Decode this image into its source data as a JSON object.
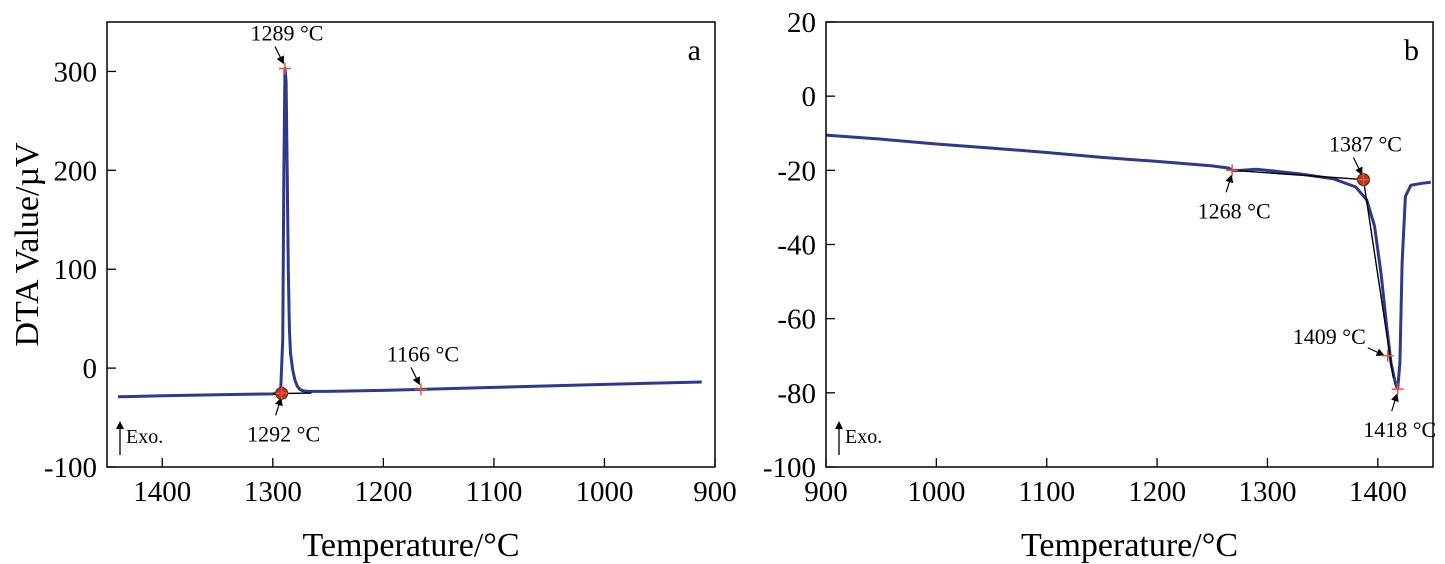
{
  "colors": {
    "curve": "#2c3a8c",
    "marker_plus": "#e8553a",
    "marker_dot": "#b5361f",
    "tangent": "#000000",
    "arrow": "#000000"
  },
  "chart_data": [
    {
      "type": "line",
      "panel": "a",
      "xlabel": "Temperature/°C",
      "ylabel": "DTA Value/µV",
      "xlim": [
        1450,
        900
      ],
      "ylim": [
        -100,
        350
      ],
      "x_reversed": true,
      "xticks": [
        1400,
        1300,
        1200,
        1100,
        1000,
        900
      ],
      "xtick_labels": [
        "1400",
        "1300",
        "1200",
        "1100",
        "1000",
        "900"
      ],
      "yticks": [
        -100,
        0,
        100,
        200,
        300
      ],
      "ytick_labels": [
        "-100",
        "0",
        "100",
        "200",
        "300"
      ],
      "exo_label": "Exo.",
      "series": [
        {
          "x": [
            1440,
            1400,
            1350,
            1300,
            1296,
            1293,
            1291,
            1290,
            1289,
            1288,
            1287,
            1286,
            1285,
            1284,
            1282,
            1280,
            1278,
            1276,
            1274,
            1272,
            1268,
            1250,
            1200,
            1166,
            1100,
            1050,
            1000,
            950,
            912
          ],
          "y": [
            -29,
            -28,
            -27,
            -26,
            -25.5,
            -25.3,
            30,
            200,
            303,
            290,
            200,
            100,
            40,
            15,
            -2,
            -12,
            -18,
            -21,
            -22.5,
            -23,
            -23.5,
            -23.5,
            -22.5,
            -21.5,
            -19.5,
            -18,
            -16.5,
            -15,
            -14
          ]
        }
      ],
      "tangents": [
        {
          "x": [
            1300,
            1265
          ],
          "y": [
            -25.8,
            -25.2
          ]
        }
      ],
      "annotations": [
        {
          "text": "1289 °C",
          "x": 1289,
          "y": 303,
          "marker": "plus",
          "label_side": "above"
        },
        {
          "text": "1292 °C",
          "x": 1292,
          "y": -25.5,
          "marker": "dot",
          "label_side": "below"
        },
        {
          "text": "1166 °C",
          "x": 1166,
          "y": -21.5,
          "marker": "plus",
          "label_side": "above"
        }
      ],
      "panel_label": "a"
    },
    {
      "type": "line",
      "panel": "b",
      "xlabel": "Temperature/°C",
      "ylabel": "",
      "xlim": [
        900,
        1450
      ],
      "ylim": [
        -100,
        20
      ],
      "x_reversed": false,
      "xticks": [
        900,
        1000,
        1100,
        1200,
        1300,
        1400
      ],
      "xtick_labels": [
        "900",
        "1000",
        "1100",
        "1200",
        "1300",
        "1400"
      ],
      "yticks": [
        -100,
        -80,
        -60,
        -40,
        -20,
        0,
        20
      ],
      "ytick_labels": [
        "-100",
        "-80",
        "-60",
        "-40",
        "-20",
        "0",
        "20"
      ],
      "exo_label": "Exo.",
      "series": [
        {
          "x": [
            900,
            950,
            1000,
            1050,
            1100,
            1150,
            1200,
            1250,
            1265,
            1268,
            1275,
            1290,
            1300,
            1330,
            1360,
            1380,
            1390,
            1397,
            1403,
            1408,
            1412,
            1416,
            1418,
            1420,
            1422,
            1425,
            1430,
            1440,
            1448
          ],
          "y": [
            -10.5,
            -11.6,
            -12.9,
            -14.0,
            -15.2,
            -16.5,
            -17.6,
            -18.8,
            -19.4,
            -20.0,
            -20.0,
            -19.7,
            -20.0,
            -21.0,
            -22.3,
            -24.5,
            -28,
            -35,
            -48,
            -62,
            -72,
            -77.5,
            -79,
            -72,
            -45,
            -27,
            -24,
            -23.5,
            -23.2
          ]
        }
      ],
      "tangents": [
        {
          "x": [
            1268,
            1387
          ],
          "y": [
            -20.0,
            -22.5
          ]
        },
        {
          "x": [
            1387,
            1414
          ],
          "y": [
            -22.5,
            -76
          ]
        }
      ],
      "annotations": [
        {
          "text": "1387 °C",
          "x": 1387,
          "y": -22.5,
          "marker": "dot",
          "label_side": "above"
        },
        {
          "text": "1268 °C",
          "x": 1268,
          "y": -20.0,
          "marker": "plus",
          "label_side": "below"
        },
        {
          "text": "1409 °C",
          "x": 1409,
          "y": -70,
          "marker": "plus",
          "label_side": "left"
        },
        {
          "text": "1418 °C",
          "x": 1418,
          "y": -79,
          "marker": "plus",
          "label_side": "below"
        }
      ],
      "panel_label": "b"
    }
  ]
}
